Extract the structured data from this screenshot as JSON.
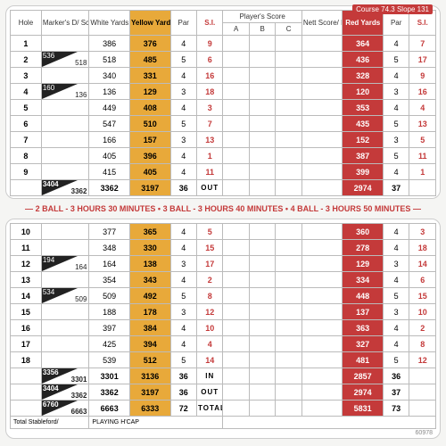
{
  "topNote": "Course 74.3  Slope 131",
  "headers": {
    "hole": "Hole",
    "marker": "Marker's D/ Score",
    "markerTop": "Marker/D",
    "white": "White Yards",
    "yellow": "Yellow Yards",
    "par": "Par",
    "si": "S.I.",
    "player": "Player's Score",
    "a": "A",
    "b": "B",
    "c": "C",
    "nett": "Nett Score/ Points",
    "red": "Red Yards",
    "par2": "Par",
    "si2": "S.I."
  },
  "front": [
    {
      "h": "1",
      "m": [
        "",
        ""
      ],
      "w": "386",
      "y": "376",
      "p": "4",
      "s": "9",
      "r": "364",
      "p2": "4",
      "s2": "7"
    },
    {
      "h": "2",
      "m": [
        "536",
        "518"
      ],
      "w": "518",
      "y": "485",
      "p": "5",
      "s": "6",
      "r": "436",
      "p2": "5",
      "s2": "17"
    },
    {
      "h": "3",
      "m": [
        "",
        ""
      ],
      "w": "340",
      "y": "331",
      "p": "4",
      "s": "16",
      "r": "328",
      "p2": "4",
      "s2": "9"
    },
    {
      "h": "4",
      "m": [
        "160",
        "136"
      ],
      "w": "136",
      "y": "129",
      "p": "3",
      "s": "18",
      "r": "120",
      "p2": "3",
      "s2": "16"
    },
    {
      "h": "5",
      "m": [
        "",
        ""
      ],
      "w": "449",
      "y": "408",
      "p": "4",
      "s": "3",
      "r": "353",
      "p2": "4",
      "s2": "4"
    },
    {
      "h": "6",
      "m": [
        "",
        ""
      ],
      "w": "547",
      "y": "510",
      "p": "5",
      "s": "7",
      "r": "435",
      "p2": "5",
      "s2": "13"
    },
    {
      "h": "7",
      "m": [
        "",
        ""
      ],
      "w": "166",
      "y": "157",
      "p": "3",
      "s": "13",
      "r": "152",
      "p2": "3",
      "s2": "5"
    },
    {
      "h": "8",
      "m": [
        "",
        ""
      ],
      "w": "405",
      "y": "396",
      "p": "4",
      "s": "1",
      "r": "387",
      "p2": "5",
      "s2": "11"
    },
    {
      "h": "9",
      "m": [
        "",
        ""
      ],
      "w": "415",
      "y": "405",
      "p": "4",
      "s": "11",
      "r": "399",
      "p2": "4",
      "s2": "1"
    }
  ],
  "frontTotal": {
    "m": [
      "3404",
      "3362"
    ],
    "w": "3362",
    "y": "3197",
    "p": "36",
    "lbl": "OUT",
    "r": "2974",
    "p2": "37"
  },
  "pace": "2 BALL - 3 HOURS 30 MINUTES  •  3 BALL - 3 HOURS 40 MINUTES  •  4 BALL - 3 HOURS 50 MINUTES",
  "back": [
    {
      "h": "10",
      "m": [
        "",
        ""
      ],
      "w": "377",
      "y": "365",
      "p": "4",
      "s": "5",
      "r": "360",
      "p2": "4",
      "s2": "3"
    },
    {
      "h": "11",
      "m": [
        "",
        ""
      ],
      "w": "348",
      "y": "330",
      "p": "4",
      "s": "15",
      "r": "278",
      "p2": "4",
      "s2": "18"
    },
    {
      "h": "12",
      "m": [
        "194",
        "164"
      ],
      "w": "164",
      "y": "138",
      "p": "3",
      "s": "17",
      "r": "129",
      "p2": "3",
      "s2": "14"
    },
    {
      "h": "13",
      "m": [
        "",
        ""
      ],
      "w": "354",
      "y": "343",
      "p": "4",
      "s": "2",
      "r": "334",
      "p2": "4",
      "s2": "6"
    },
    {
      "h": "14",
      "m": [
        "534",
        "509"
      ],
      "w": "509",
      "y": "492",
      "p": "5",
      "s": "8",
      "r": "448",
      "p2": "5",
      "s2": "15"
    },
    {
      "h": "15",
      "m": [
        "",
        ""
      ],
      "w": "188",
      "y": "178",
      "p": "3",
      "s": "12",
      "r": "137",
      "p2": "3",
      "s2": "10"
    },
    {
      "h": "16",
      "m": [
        "",
        ""
      ],
      "w": "397",
      "y": "384",
      "p": "4",
      "s": "10",
      "r": "363",
      "p2": "4",
      "s2": "2"
    },
    {
      "h": "17",
      "m": [
        "",
        ""
      ],
      "w": "425",
      "y": "394",
      "p": "4",
      "s": "4",
      "r": "327",
      "p2": "4",
      "s2": "8"
    },
    {
      "h": "18",
      "m": [
        "",
        ""
      ],
      "w": "539",
      "y": "512",
      "p": "5",
      "s": "14",
      "r": "481",
      "p2": "5",
      "s2": "12"
    }
  ],
  "backTotals": [
    {
      "m": [
        "3356",
        "3301"
      ],
      "w": "3301",
      "y": "3136",
      "p": "36",
      "lbl": "IN",
      "r": "2857",
      "p2": "36"
    },
    {
      "m": [
        "3404",
        "3362"
      ],
      "w": "3362",
      "y": "3197",
      "p": "36",
      "lbl": "OUT",
      "r": "2974",
      "p2": "37"
    },
    {
      "m": [
        "6760",
        "6663"
      ],
      "w": "6663",
      "y": "6333",
      "p": "72",
      "lbl": "TOTAL",
      "r": "5831",
      "p2": "73"
    }
  ],
  "footer": {
    "stable": "Total Stableford/",
    "hcap": "PLAYING H'CAP"
  },
  "corner": "60978"
}
